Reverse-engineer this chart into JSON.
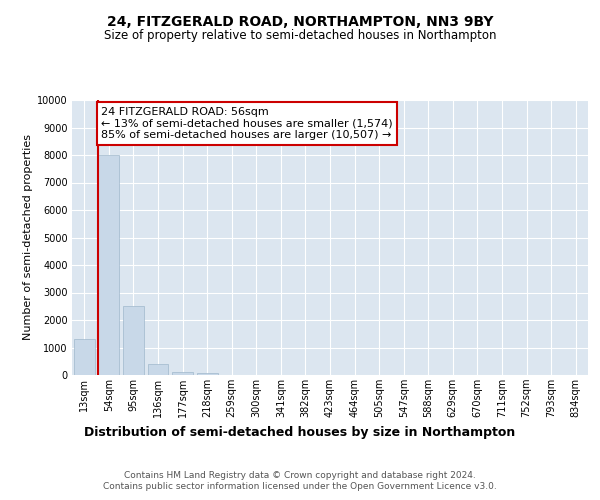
{
  "title": "24, FITZGERALD ROAD, NORTHAMPTON, NN3 9BY",
  "subtitle": "Size of property relative to semi-detached houses in Northampton",
  "xlabel": "Distribution of semi-detached houses by size in Northampton",
  "ylabel": "Number of semi-detached properties",
  "categories": [
    "13sqm",
    "54sqm",
    "95sqm",
    "136sqm",
    "177sqm",
    "218sqm",
    "259sqm",
    "300sqm",
    "341sqm",
    "382sqm",
    "423sqm",
    "464sqm",
    "505sqm",
    "547sqm",
    "588sqm",
    "629sqm",
    "670sqm",
    "711sqm",
    "752sqm",
    "793sqm",
    "834sqm"
  ],
  "values": [
    1300,
    8000,
    2500,
    400,
    110,
    80,
    0,
    0,
    0,
    0,
    0,
    0,
    0,
    0,
    0,
    0,
    0,
    0,
    0,
    0,
    0
  ],
  "bar_color": "#c8d8e8",
  "bar_edge_color": "#a0b8cc",
  "property_line_color": "#cc0000",
  "annotation_text_line1": "24 FITZGERALD ROAD: 56sqm",
  "annotation_text_line2": "← 13% of semi-detached houses are smaller (1,574)",
  "annotation_text_line3": "85% of semi-detached houses are larger (10,507) →",
  "annotation_box_edgecolor": "#cc0000",
  "ylim": [
    0,
    10000
  ],
  "yticks": [
    0,
    1000,
    2000,
    3000,
    4000,
    5000,
    6000,
    7000,
    8000,
    9000,
    10000
  ],
  "background_color": "#dce6f0",
  "grid_color": "#ffffff",
  "footer_text": "Contains HM Land Registry data © Crown copyright and database right 2024.\nContains public sector information licensed under the Open Government Licence v3.0.",
  "title_fontsize": 10,
  "subtitle_fontsize": 8.5,
  "xlabel_fontsize": 9,
  "ylabel_fontsize": 8,
  "tick_fontsize": 7,
  "annotation_fontsize": 8,
  "footer_fontsize": 6.5
}
